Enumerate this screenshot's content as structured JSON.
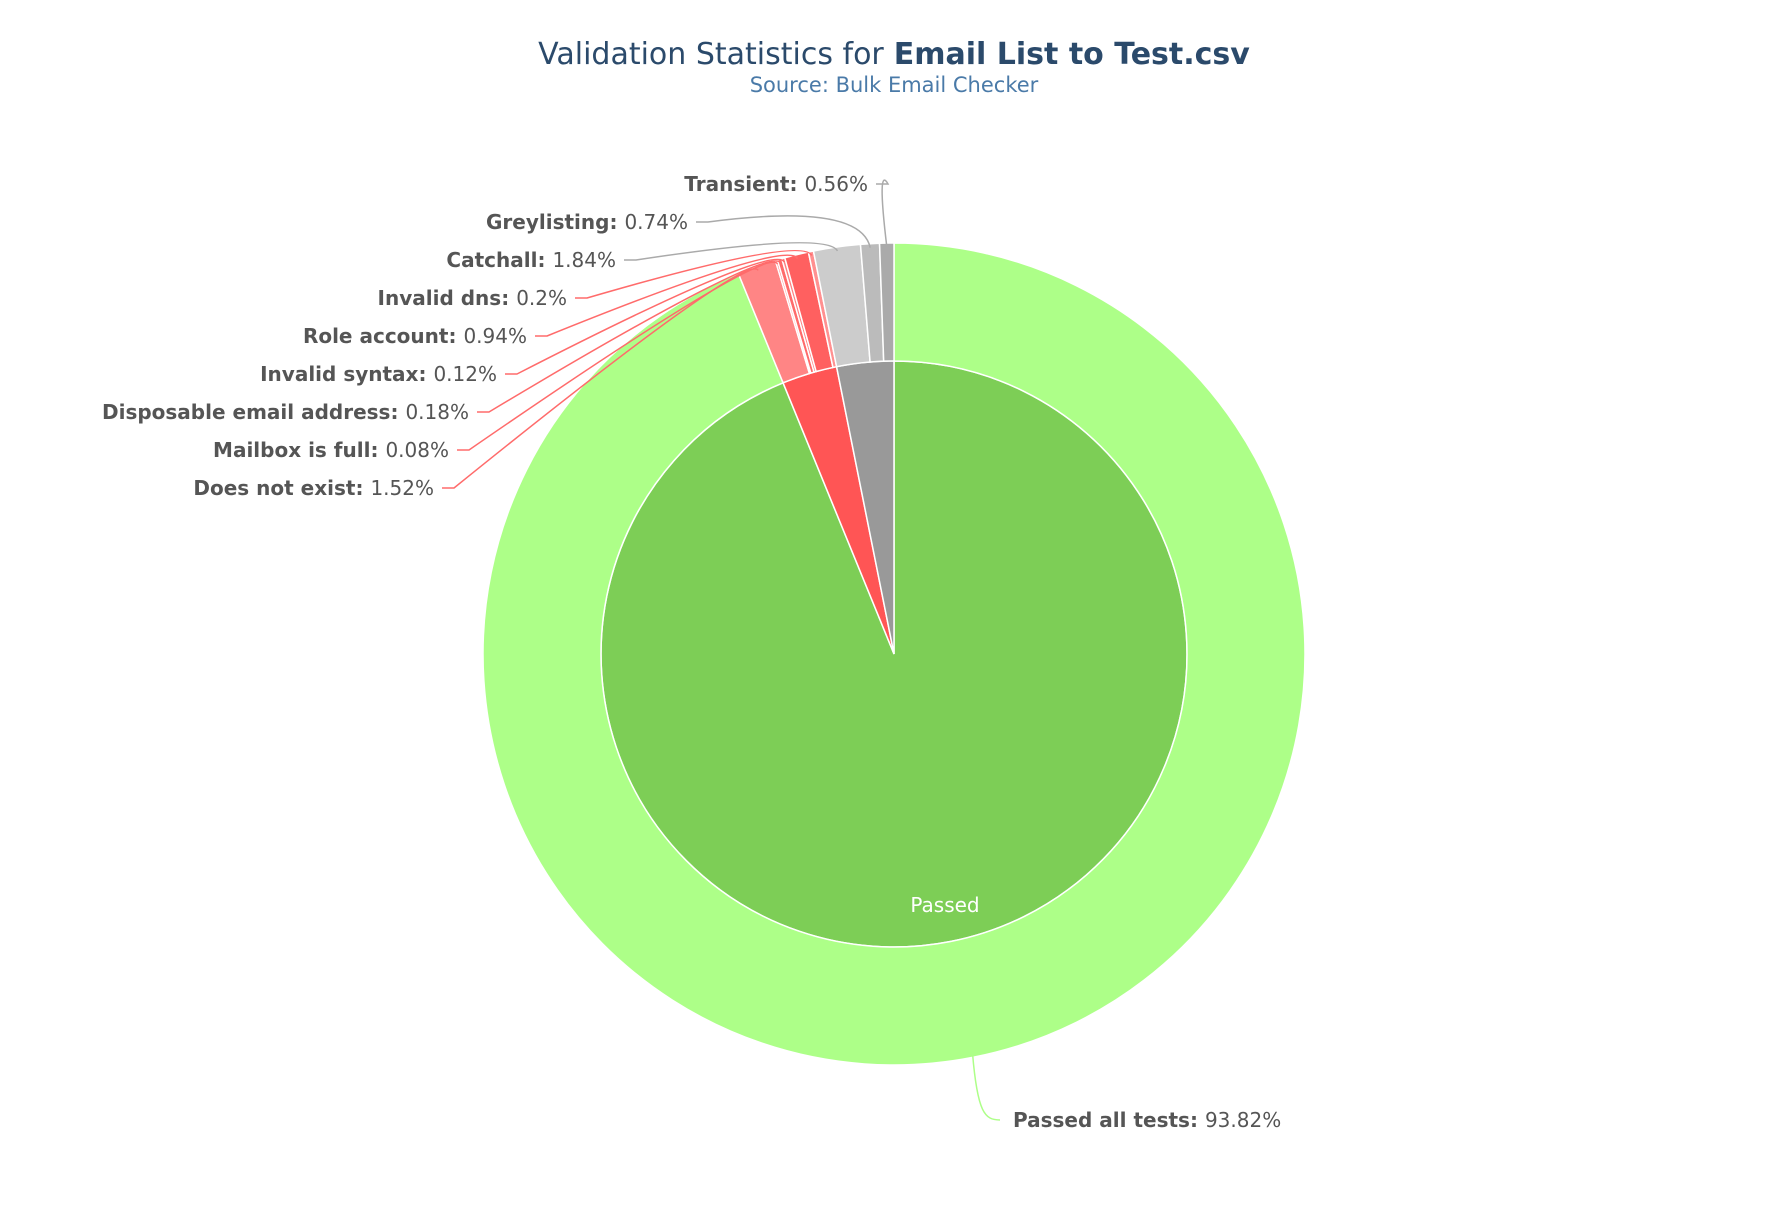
{
  "chart_data": {
    "type": "donut",
    "title": {
      "text": "Validation Statistics for",
      "bold": "Email List to Test.csv"
    },
    "subtitle": "Source: Bulk Email Checker",
    "inner": {
      "categories": [
        "Passed",
        null,
        null
      ],
      "values": [
        93.82,
        3.04,
        3.14
      ],
      "colors": [
        "#7dce56",
        "#ff5555",
        "#999999"
      ]
    },
    "outer": {
      "categories": [
        "Passed all tests",
        "Does not exist",
        "Mailbox is full",
        "Disposable email address",
        "Invalid syntax",
        "Role account",
        "Invalid dns",
        "Catchall",
        "Greylisting",
        "Transient"
      ],
      "values": [
        93.82,
        1.52,
        0.08,
        0.18,
        0.12,
        0.94,
        0.2,
        1.84,
        0.74,
        0.56
      ],
      "value_labels": [
        "93.82%",
        "1.52%",
        "0.08%",
        "0.18%",
        "0.12%",
        "0.94%",
        "0.2%",
        "1.84%",
        "0.74%",
        "0.56%"
      ],
      "colors": [
        "#adff88",
        "#ff8585",
        "#ff7575",
        "#ff6a6a",
        "#ff8080",
        "#ff6060",
        "#ff9090",
        "#cccccc",
        "#bbbbbb",
        "#aaaaaa"
      ]
    }
  }
}
